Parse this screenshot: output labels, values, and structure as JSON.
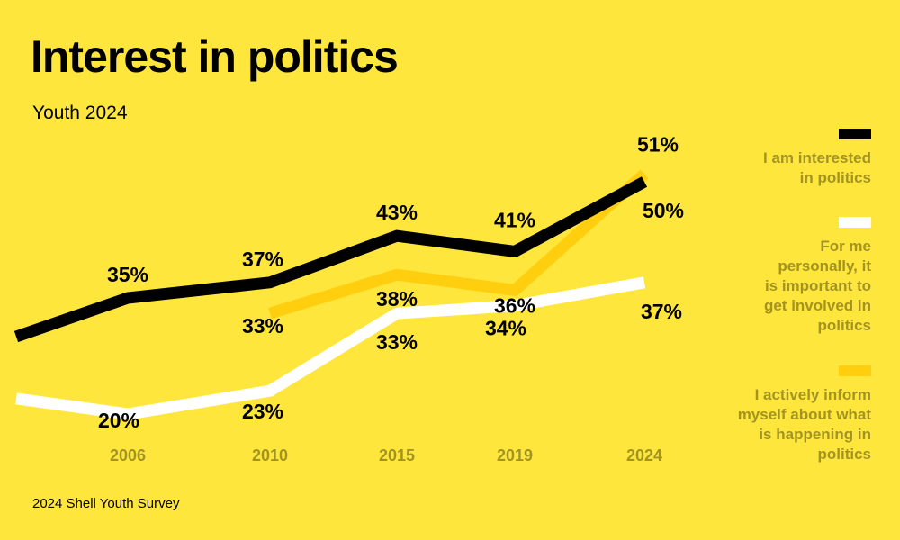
{
  "header": {
    "title": "Interest in politics",
    "subtitle": "Youth 2024"
  },
  "footer": {
    "source": "2024 Shell Youth Survey"
  },
  "colors": {
    "background": "#ffe63d",
    "interested": "#000000",
    "important": "#ffffff",
    "inform": "#ffcf0f",
    "muted_text": "#a39422"
  },
  "chart_data": {
    "type": "line",
    "title": "Interest in politics",
    "subtitle": "Youth 2024",
    "xlabel": "",
    "ylabel": "",
    "x": [
      "2006",
      "2010",
      "2015",
      "2019",
      "2024"
    ],
    "grid": false,
    "legend_position": "right",
    "series": [
      {
        "key": "interested",
        "name": "I am interested in politics",
        "color": "#000000",
        "lead_in": 30,
        "values": [
          35,
          37,
          43,
          41,
          50
        ],
        "labels": [
          "35%",
          "37%",
          "43%",
          "41%",
          "50%"
        ]
      },
      {
        "key": "inform",
        "name": "I actively inform myself about what is happening in politics",
        "color": "#ffcf0f",
        "lead_in": null,
        "values": [
          null,
          33,
          38,
          36,
          51
        ],
        "labels": [
          null,
          "33%",
          "38%",
          "36%",
          "51%"
        ]
      },
      {
        "key": "important",
        "name": "For me personally, it is important to get involved in politics",
        "color": "#ffffff",
        "lead_in": 22,
        "values": [
          20,
          23,
          33,
          34,
          37
        ],
        "labels": [
          "20%",
          "23%",
          "33%",
          "34%",
          "37%"
        ]
      }
    ]
  },
  "legend": [
    {
      "key": "interested",
      "lines": [
        "I am interested",
        "in politics"
      ],
      "color": "#000000"
    },
    {
      "key": "important",
      "lines": [
        "For me",
        "personally, it",
        "is important to",
        "get involved in",
        "politics"
      ],
      "color": "#ffffff"
    },
    {
      "key": "inform",
      "lines": [
        "I actively inform",
        "myself about what",
        "is happening in",
        "politics"
      ],
      "color": "#ffcf0f"
    }
  ]
}
